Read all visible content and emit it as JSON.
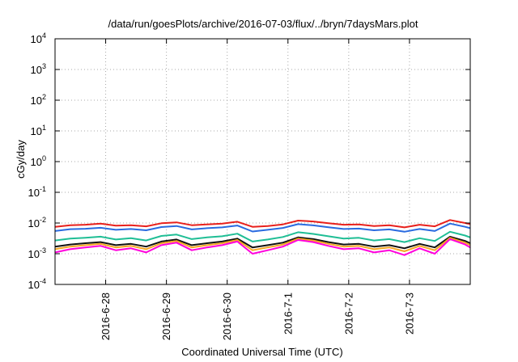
{
  "chart_data": {
    "type": "line",
    "title": "/data/run/goesPlots/archive/2016-07-03/flux/../bryn/7daysMars.plot",
    "xlabel": "Coordinated Universal Time (UTC)",
    "ylabel": "cGy/day",
    "yscale": "log",
    "ylim": [
      0.0001,
      10000
    ],
    "xlim": [
      "2016-06-27 04:00",
      "2016-07-04 00:00"
    ],
    "grid": true,
    "legend": "none",
    "y_ticks": [
      {
        "value": 0.0001,
        "base": "10",
        "exp": "-4"
      },
      {
        "value": 0.001,
        "base": "10",
        "exp": "-3"
      },
      {
        "value": 0.01,
        "base": "10",
        "exp": "-2"
      },
      {
        "value": 0.1,
        "base": "10",
        "exp": "-1"
      },
      {
        "value": 1,
        "base": "10",
        "exp": "0"
      },
      {
        "value": 10,
        "base": "10",
        "exp": "1"
      },
      {
        "value": 100,
        "base": "10",
        "exp": "2"
      },
      {
        "value": 1000,
        "base": "10",
        "exp": "3"
      },
      {
        "value": 10000,
        "base": "10",
        "exp": "4"
      }
    ],
    "x_ticks": [
      {
        "value": "2016-06-28 00:00",
        "label": "2016-6-28"
      },
      {
        "value": "2016-06-29 00:00",
        "label": "2016-6-29"
      },
      {
        "value": "2016-06-30 00:00",
        "label": "2016-6-30"
      },
      {
        "value": "2016-07-01 00:00",
        "label": "2016-7-1"
      },
      {
        "value": "2016-07-02 00:00",
        "label": "2016-7-2"
      },
      {
        "value": "2016-07-03 00:00",
        "label": "2016-7-3"
      }
    ],
    "x": [
      "2016-06-27 04:00",
      "2016-06-27 10:00",
      "2016-06-27 16:00",
      "2016-06-27 22:00",
      "2016-06-28 04:00",
      "2016-06-28 10:00",
      "2016-06-28 16:00",
      "2016-06-28 22:00",
      "2016-06-29 04:00",
      "2016-06-29 10:00",
      "2016-06-29 16:00",
      "2016-06-29 22:00",
      "2016-06-30 04:00",
      "2016-06-30 10:00",
      "2016-06-30 16:00",
      "2016-06-30 22:00",
      "2016-07-01 04:00",
      "2016-07-01 10:00",
      "2016-07-01 16:00",
      "2016-07-01 22:00",
      "2016-07-02 04:00",
      "2016-07-02 10:00",
      "2016-07-02 16:00",
      "2016-07-02 22:00",
      "2016-07-03 04:00",
      "2016-07-03 10:00",
      "2016-07-03 16:00",
      "2016-07-03 22:00",
      "2016-07-04 00:00"
    ],
    "series": [
      {
        "color": "#e8201c",
        "values": [
          0.0075,
          0.0085,
          0.0088,
          0.0095,
          0.0082,
          0.0085,
          0.0078,
          0.0098,
          0.0105,
          0.0085,
          0.009,
          0.0095,
          0.011,
          0.0075,
          0.008,
          0.009,
          0.012,
          0.0112,
          0.0098,
          0.0088,
          0.009,
          0.008,
          0.0085,
          0.0072,
          0.0088,
          0.0078,
          0.0125,
          0.01,
          0.0092
        ]
      },
      {
        "color": "#2a6be0",
        "values": [
          0.0055,
          0.0063,
          0.0065,
          0.007,
          0.006,
          0.0064,
          0.0058,
          0.0074,
          0.008,
          0.0062,
          0.0068,
          0.0072,
          0.0083,
          0.0053,
          0.006,
          0.0069,
          0.0092,
          0.0084,
          0.0073,
          0.0064,
          0.0066,
          0.0058,
          0.0062,
          0.0052,
          0.0064,
          0.0055,
          0.0096,
          0.0075,
          0.0068
        ]
      },
      {
        "color": "#1fbe95",
        "values": [
          0.0027,
          0.0031,
          0.0033,
          0.0036,
          0.0029,
          0.0032,
          0.0027,
          0.0038,
          0.0042,
          0.003,
          0.0034,
          0.0037,
          0.0045,
          0.0025,
          0.0029,
          0.0035,
          0.005,
          0.0044,
          0.0037,
          0.0031,
          0.0033,
          0.0027,
          0.003,
          0.0024,
          0.0032,
          0.0026,
          0.0052,
          0.0039,
          0.0034
        ]
      },
      {
        "color": "#111111",
        "values": [
          0.0017,
          0.002,
          0.0022,
          0.0024,
          0.0019,
          0.0021,
          0.0017,
          0.0025,
          0.0029,
          0.0019,
          0.0022,
          0.0025,
          0.0031,
          0.0016,
          0.0019,
          0.0023,
          0.0034,
          0.003,
          0.0024,
          0.002,
          0.0021,
          0.0017,
          0.0019,
          0.0015,
          0.0021,
          0.0016,
          0.0036,
          0.0026,
          0.0022
        ]
      },
      {
        "color": "#f5a623",
        "values": [
          0.0014,
          0.0017,
          0.0019,
          0.0021,
          0.0016,
          0.0018,
          0.0014,
          0.0022,
          0.0026,
          0.0016,
          0.0019,
          0.0022,
          0.0028,
          0.0013,
          0.0016,
          0.002,
          0.0031,
          0.0027,
          0.0021,
          0.0017,
          0.0018,
          0.0014,
          0.0016,
          0.0012,
          0.0018,
          0.0013,
          0.0033,
          0.0023,
          0.0019
        ]
      },
      {
        "color": "#ff00dd",
        "values": [
          0.0011,
          0.0014,
          0.0016,
          0.0018,
          0.0013,
          0.0015,
          0.0011,
          0.0019,
          0.0023,
          0.0013,
          0.0016,
          0.0019,
          0.0025,
          0.001,
          0.0013,
          0.0017,
          0.0028,
          0.0024,
          0.0018,
          0.0014,
          0.0015,
          0.0011,
          0.0013,
          0.0009,
          0.0015,
          0.001,
          0.003,
          0.002,
          0.0016
        ]
      }
    ]
  }
}
